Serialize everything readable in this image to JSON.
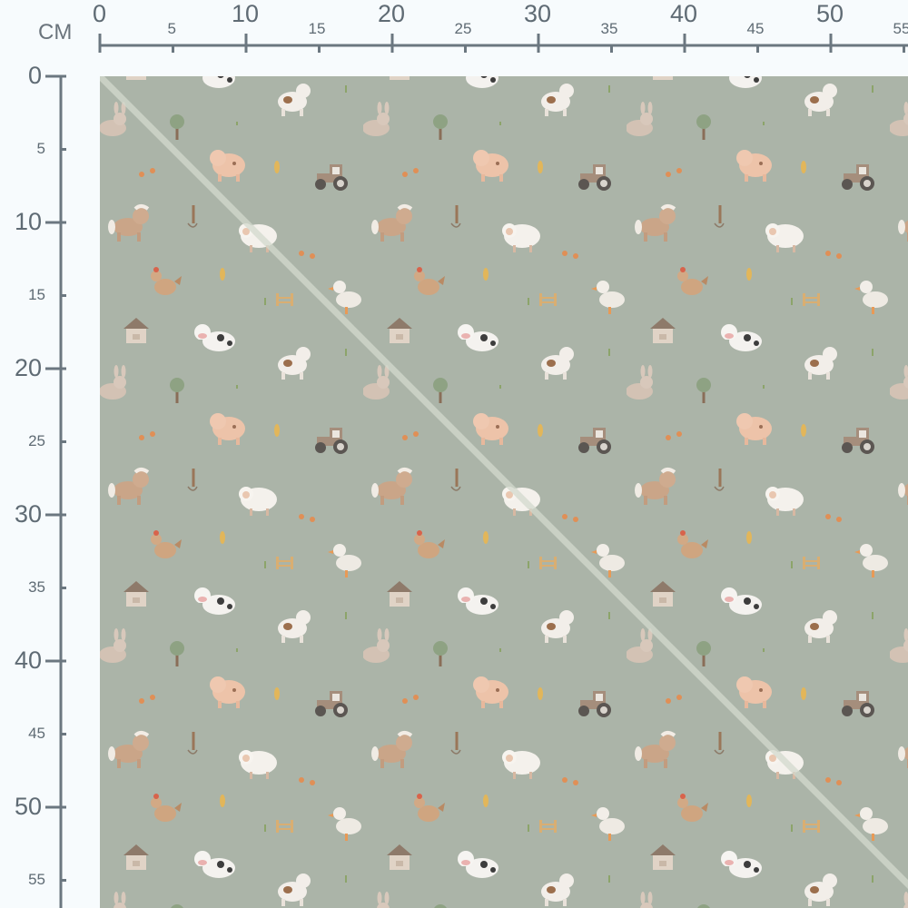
{
  "ruler": {
    "unit": "CM",
    "top_labels": [
      "0",
      "5",
      "10",
      "15",
      "20",
      "25",
      "30",
      "35",
      "40",
      "45",
      "50",
      "55"
    ],
    "left_labels": [
      "0",
      "5",
      "10",
      "15",
      "20",
      "25",
      "30",
      "35",
      "40",
      "45",
      "50",
      "55"
    ],
    "color": "#6b7780"
  },
  "fabric": {
    "background": "#abb4a8",
    "fold_line_color": "#d3dace",
    "motifs": [
      "cow",
      "spotted-cow",
      "rabbit",
      "tree",
      "pig",
      "tractor",
      "horse",
      "sheep",
      "chicken",
      "duck",
      "dog-house",
      "carrot",
      "corn",
      "fence",
      "pitchfork"
    ]
  }
}
